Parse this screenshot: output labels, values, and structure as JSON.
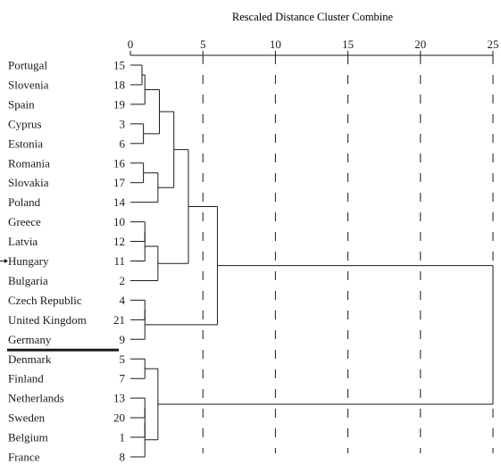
{
  "title": "Rescaled Distance Cluster Combine",
  "axis": {
    "min": 0,
    "max": 25,
    "ticks": [
      0,
      5,
      10,
      15,
      20,
      25
    ]
  },
  "cases": [
    {
      "label": "Portugal",
      "id": "15"
    },
    {
      "label": "Slovenia",
      "id": "18"
    },
    {
      "label": "Spain",
      "id": "19"
    },
    {
      "label": "Cyprus",
      "id": "3"
    },
    {
      "label": "Estonia",
      "id": "6"
    },
    {
      "label": "Romania",
      "id": "16"
    },
    {
      "label": "Slovakia",
      "id": "17"
    },
    {
      "label": "Poland",
      "id": "14"
    },
    {
      "label": "Greece",
      "id": "10"
    },
    {
      "label": "Latvia",
      "id": "12"
    },
    {
      "label": "Hungary",
      "id": "11"
    },
    {
      "label": "Bulgaria",
      "id": "2"
    },
    {
      "label": "Czech Republic",
      "id": "4"
    },
    {
      "label": "United Kingdom",
      "id": "21"
    },
    {
      "label": "Germany",
      "id": "9"
    },
    {
      "label": "Denmark",
      "id": "5"
    },
    {
      "label": "Finland",
      "id": "7"
    },
    {
      "label": "Netherlands",
      "id": "13"
    },
    {
      "label": "Sweden",
      "id": "20"
    },
    {
      "label": "Belgium",
      "id": "1"
    },
    {
      "label": "France",
      "id": "8"
    }
  ],
  "merges": [
    {
      "a": "c0",
      "b": "c1",
      "d": 0.8
    },
    {
      "a": "m0",
      "b": "c2",
      "d": 1.0
    },
    {
      "a": "c3",
      "b": "c4",
      "d": 0.9
    },
    {
      "a": "m1",
      "b": "m2",
      "d": 2.0
    },
    {
      "a": "c5",
      "b": "c6",
      "d": 0.9
    },
    {
      "a": "m4",
      "b": "c7",
      "d": 1.9
    },
    {
      "a": "m3",
      "b": "m5",
      "d": 3.0
    },
    {
      "a": "c8",
      "b": "c9",
      "d": 1.0
    },
    {
      "a": "m7",
      "b": "c10",
      "d": 1.0
    },
    {
      "a": "m8",
      "b": "c11",
      "d": 1.9
    },
    {
      "a": "m6",
      "b": "m9",
      "d": 4.0
    },
    {
      "a": "c12",
      "b": "c13",
      "d": 1.0
    },
    {
      "a": "m11",
      "b": "c14",
      "d": 1.0
    },
    {
      "a": "m10",
      "b": "m12",
      "d": 6.0
    },
    {
      "a": "c15",
      "b": "c16",
      "d": 1.0
    },
    {
      "a": "c17",
      "b": "c18",
      "d": 1.0
    },
    {
      "a": "m15",
      "b": "c19",
      "d": 1.0
    },
    {
      "a": "m16",
      "b": "c20",
      "d": 1.0
    },
    {
      "a": "m14",
      "b": "m17",
      "d": 1.9
    },
    {
      "a": "m13",
      "b": "m18",
      "d": 25.0
    }
  ],
  "dashed_guides": [
    5,
    10,
    15,
    20,
    25
  ],
  "separator_after_index": 14,
  "pointer_case_index": 10,
  "colors": {
    "line": "#1a1a1a",
    "text": "#1a1a1a",
    "background": "#ffffff"
  }
}
